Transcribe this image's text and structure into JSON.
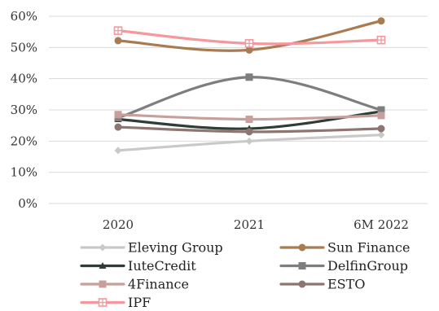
{
  "chart_data": {
    "type": "line",
    "title": "",
    "xlabel": "",
    "ylabel": "",
    "categories": [
      "2020",
      "2021",
      "6M 2022"
    ],
    "yticks": [
      "0%",
      "10%",
      "20%",
      "30%",
      "40%",
      "50%",
      "60%"
    ],
    "ylim": [
      0,
      60
    ],
    "y_unit": "%",
    "grid": "horizontal",
    "legend_position": "bottom",
    "series": [
      {
        "name": "Eleving Group",
        "values": [
          17,
          20,
          22
        ],
        "color": "#c9c9c9",
        "marker": "diamond"
      },
      {
        "name": "Sun Finance",
        "values": [
          52.2,
          49.2,
          58.5
        ],
        "color": "#a97b52",
        "marker": "circle"
      },
      {
        "name": "IuteCredit",
        "values": [
          27,
          24,
          29.5
        ],
        "color": "#2f3d36",
        "marker": "triangle"
      },
      {
        "name": "DelfinGroup",
        "values": [
          27.5,
          40.5,
          30
        ],
        "color": "#7e7e7e",
        "marker": "square"
      },
      {
        "name": "4Finance",
        "values": [
          28.5,
          27,
          28.2
        ],
        "color": "#c7a09b",
        "marker": "square"
      },
      {
        "name": "ESTO",
        "values": [
          24.5,
          23,
          24
        ],
        "color": "#8e7670",
        "marker": "circle"
      },
      {
        "name": "IPF",
        "values": [
          55.4,
          51.3,
          52.4
        ],
        "color": "#f5989d",
        "marker": "cross"
      }
    ]
  }
}
